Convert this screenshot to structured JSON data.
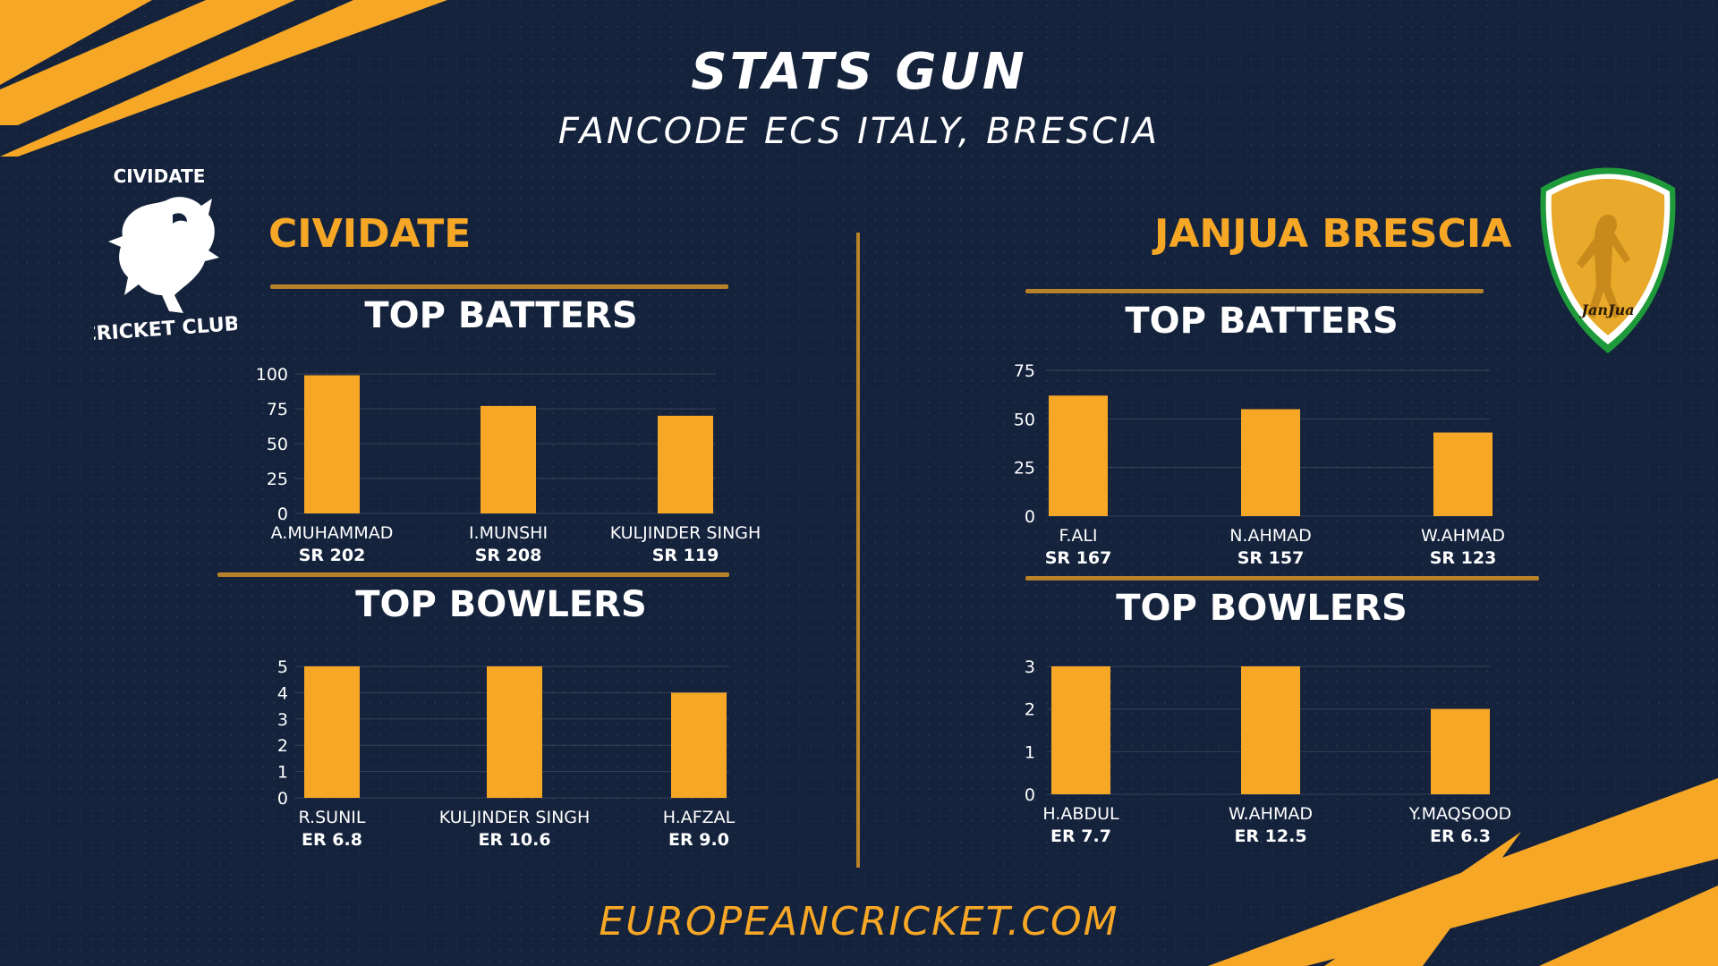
{
  "header": {
    "title": "STATS GUN",
    "subtitle": "FANCODE ECS ITALY, BRESCIA"
  },
  "colors": {
    "background": "#14223c",
    "accent": "#f7a726",
    "rule": "#b7822a",
    "text": "#ffffff"
  },
  "left_team": {
    "name": "CIVIDATE",
    "logo_top": "CIVIDATE",
    "logo_bottom": "CRICKET CLUB",
    "batters_title": "TOP BATTERS",
    "bowlers_title": "TOP BOWLERS"
  },
  "right_team": {
    "name": "JANJUA BRESCIA",
    "logo_text": "JanJua",
    "batters_title": "TOP BATTERS",
    "bowlers_title": "TOP BOWLERS"
  },
  "footer": {
    "text": "EUROPEANCRICKET.COM"
  },
  "chart_data": [
    {
      "id": "left_batters",
      "type": "bar",
      "title": "TOP BATTERS",
      "categories": [
        "A.MUHAMMAD",
        "I.MUNSHI",
        "KULJINDER SINGH"
      ],
      "sublabels": [
        "SR 202",
        "SR 208",
        "SR 119"
      ],
      "values": [
        99,
        77,
        70
      ],
      "ylim": [
        0,
        100
      ],
      "yticks": [
        0,
        25,
        50,
        75,
        100
      ],
      "grid": true
    },
    {
      "id": "left_bowlers",
      "type": "bar",
      "title": "TOP BOWLERS",
      "categories": [
        "R.SUNIL",
        "KULJINDER SINGH",
        "H.AFZAL"
      ],
      "sublabels": [
        "ER 6.8",
        "ER 10.6",
        "ER 9.0"
      ],
      "values": [
        5,
        5,
        4
      ],
      "ylim": [
        0,
        5
      ],
      "yticks": [
        0,
        1,
        2,
        3,
        4,
        5
      ],
      "grid": true
    },
    {
      "id": "right_batters",
      "type": "bar",
      "title": "TOP BATTERS",
      "categories": [
        "F.ALI",
        "N.AHMAD",
        "W.AHMAD"
      ],
      "sublabels": [
        "SR 167",
        "SR 157",
        "SR 123"
      ],
      "values": [
        62,
        55,
        43
      ],
      "ylim": [
        0,
        75
      ],
      "yticks": [
        0,
        25,
        50,
        75
      ],
      "grid": true
    },
    {
      "id": "right_bowlers",
      "type": "bar",
      "title": "TOP BOWLERS",
      "categories": [
        "H.ABDUL",
        "W.AHMAD",
        "Y.MAQSOOD"
      ],
      "sublabels": [
        "ER 7.7",
        "ER 12.5",
        "ER 6.3"
      ],
      "values": [
        3,
        3,
        2
      ],
      "ylim": [
        0,
        3
      ],
      "yticks": [
        0,
        1,
        2,
        3
      ],
      "grid": true
    }
  ]
}
